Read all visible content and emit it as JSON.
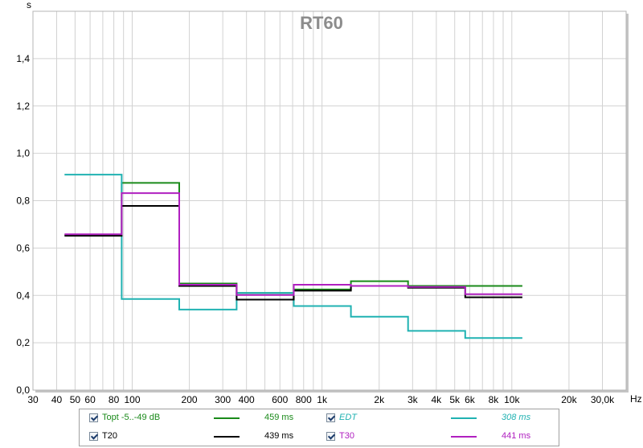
{
  "chart_data": {
    "type": "line",
    "title": "RT60",
    "ylabel": "s",
    "xlabel": "Hz",
    "x_scale": "log",
    "xlim": [
      30,
      40000
    ],
    "ylim": [
      0,
      1.6
    ],
    "y_ticks": [
      0,
      0.2,
      0.4,
      0.6,
      0.8,
      1.0,
      1.2,
      1.4
    ],
    "y_tick_labels": [
      "0,0",
      "0,2",
      "0,4",
      "0,6",
      "0,8",
      "1,0",
      "1,2",
      "1,4"
    ],
    "x_ticks": [
      30,
      40,
      50,
      60,
      80,
      100,
      200,
      300,
      400,
      600,
      800,
      1000,
      2000,
      3000,
      4000,
      5000,
      6000,
      8000,
      10000,
      20000,
      30000
    ],
    "x_tick_labels": [
      "30",
      "40",
      "50",
      "60",
      "80",
      "100",
      "200",
      "300",
      "400",
      "600",
      "800",
      "1k",
      "2k",
      "3k",
      "4k",
      "5k",
      "6k",
      "8k",
      "10k",
      "20k",
      "30,0k"
    ],
    "grid": true,
    "legend_position": "bottom",
    "band_edges": [
      44,
      88,
      177,
      355,
      710,
      1420,
      2840,
      5680,
      11360
    ],
    "series": [
      {
        "name": "Topt -5..-49 dB",
        "value_label": "459 ms",
        "color": "#1a8a1a",
        "values": [
          0.655,
          0.875,
          0.45,
          0.41,
          0.425,
          0.46,
          0.44,
          0.44
        ]
      },
      {
        "name": "EDT",
        "value_label": "308 ms",
        "color": "#20b2b2",
        "values": [
          0.91,
          0.385,
          0.34,
          0.41,
          0.355,
          0.31,
          0.25,
          0.22
        ]
      },
      {
        "name": "T20",
        "value_label": "439 ms",
        "color": "#000000",
        "values": [
          0.652,
          0.778,
          0.44,
          0.382,
          0.42,
          0.44,
          0.432,
          0.392
        ]
      },
      {
        "name": "T30",
        "value_label": "441 ms",
        "color": "#b020c0",
        "values": [
          0.658,
          0.832,
          0.445,
          0.402,
          0.445,
          0.44,
          0.436,
          0.405
        ]
      }
    ]
  },
  "legend": [
    {
      "label": "Topt -5..-49 dB",
      "value": "459 ms",
      "color": "#1a8a1a",
      "label_color": "#1a8a1a",
      "italic": false,
      "checked": true
    },
    {
      "label": "EDT",
      "value": "308 ms",
      "color": "#20b2b2",
      "label_color": "#20b2b2",
      "italic": true,
      "checked": true
    },
    {
      "label": "T20",
      "value": "439 ms",
      "color": "#000000",
      "label_color": "#000000",
      "italic": false,
      "checked": true
    },
    {
      "label": "T30",
      "value": "441 ms",
      "color": "#b020c0",
      "label_color": "#b020c0",
      "italic": false,
      "checked": true
    }
  ]
}
